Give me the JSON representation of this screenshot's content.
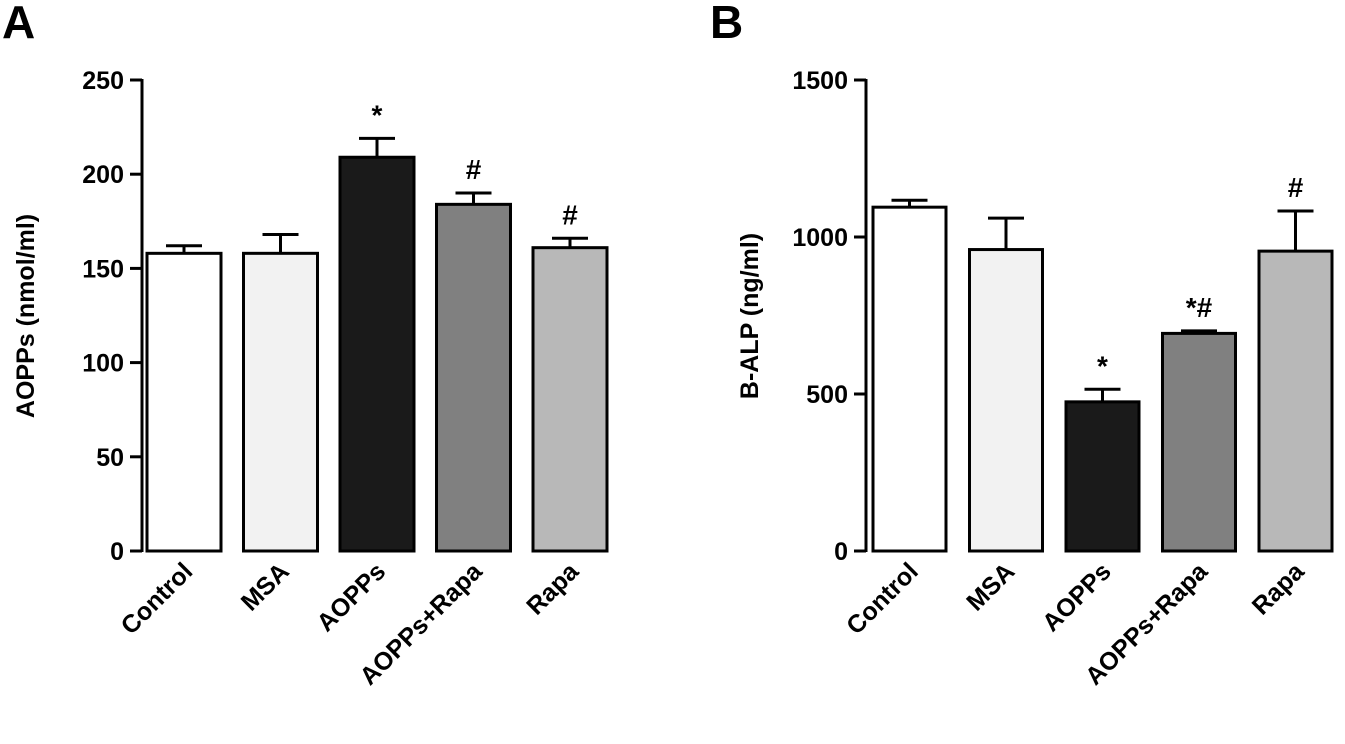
{
  "chart_data": [
    {
      "type": "bar",
      "panel_label": "A",
      "title": "",
      "xlabel": "",
      "ylabel": "AOPPs (nmol/ml)",
      "ylim": [
        0,
        250
      ],
      "yticks": [
        0,
        50,
        100,
        150,
        200,
        250
      ],
      "grid": false,
      "categories": [
        "Control",
        "MSA",
        "AOPPs",
        "AOPPs+Rapa",
        "Rapa"
      ],
      "values": [
        158,
        158,
        209,
        184,
        161
      ],
      "errors": [
        4,
        10,
        10,
        6,
        5
      ],
      "colors": [
        "#ffffff",
        "#f2f2f2",
        "#1a1a1a",
        "#808080",
        "#b8b8b8"
      ],
      "annotations": [
        "",
        "",
        "*",
        "#",
        "#"
      ]
    },
    {
      "type": "bar",
      "panel_label": "B",
      "title": "",
      "xlabel": "",
      "ylabel": "B-ALP (ng/ml)",
      "ylim": [
        0,
        1500
      ],
      "yticks": [
        0,
        500,
        1000,
        1500
      ],
      "grid": false,
      "categories": [
        "Control",
        "MSA",
        "AOPPs",
        "AOPPs+Rapa",
        "Rapa"
      ],
      "values": [
        1095,
        960,
        475,
        693,
        955
      ],
      "errors": [
        22,
        100,
        40,
        8,
        128
      ],
      "colors": [
        "#ffffff",
        "#f2f2f2",
        "#1a1a1a",
        "#808080",
        "#b8b8b8"
      ],
      "annotations": [
        "",
        "",
        "*",
        "*#",
        "#"
      ]
    }
  ]
}
